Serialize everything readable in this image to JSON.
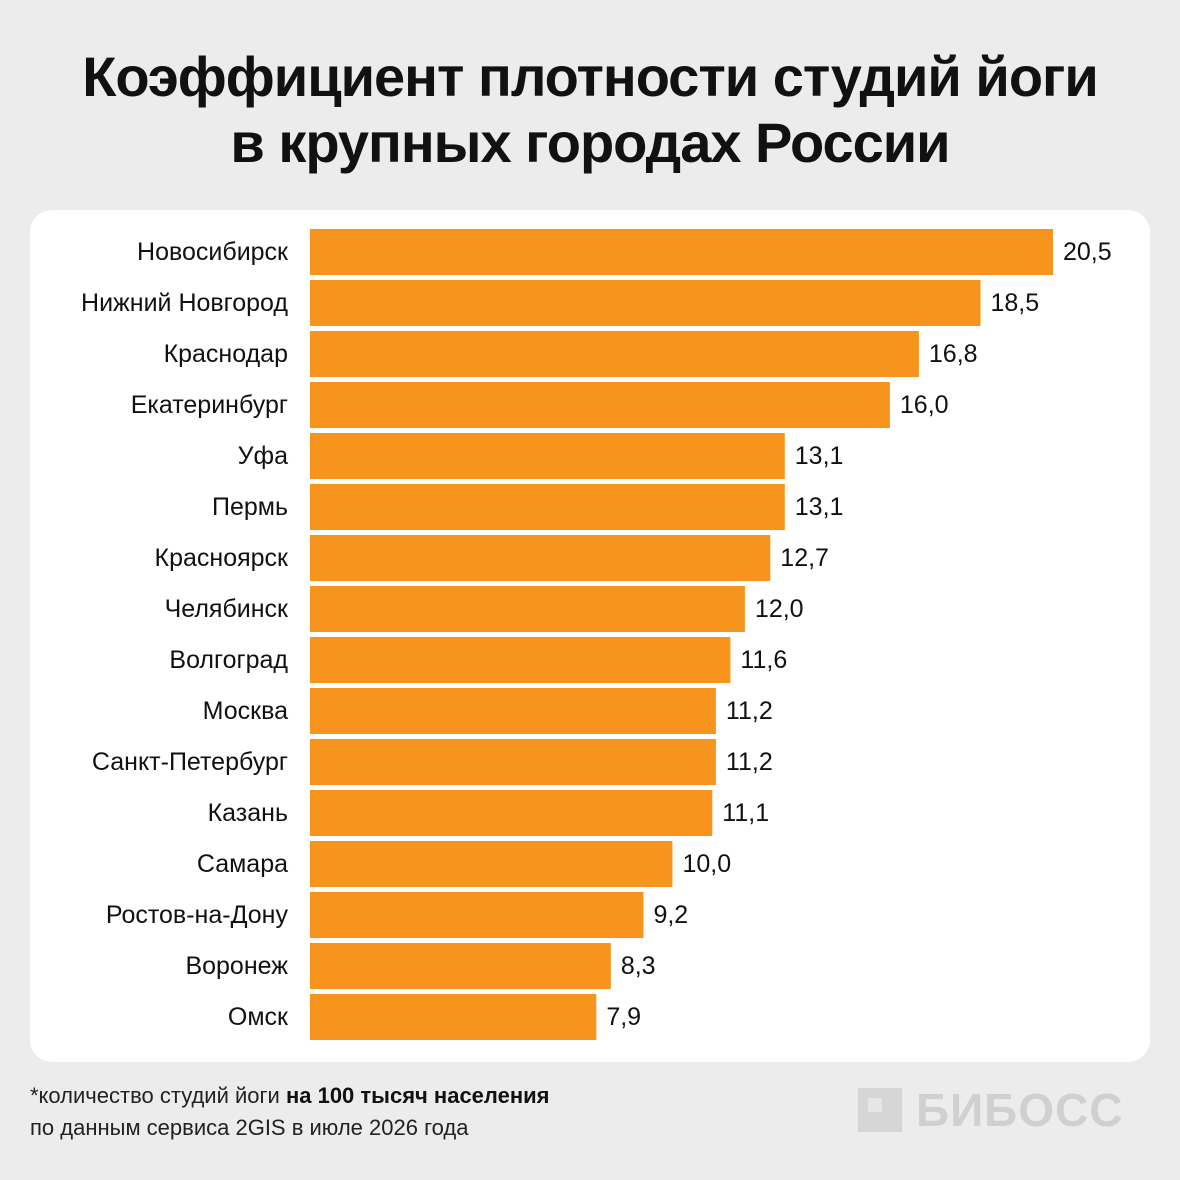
{
  "title_line1": "Коэффициент плотности студий йоги",
  "title_line2": "в крупных городах России",
  "footnote": {
    "line1_prefix": "*количество студий йоги ",
    "line1_bold": "на 100 тысяч населения",
    "line2": "по данным сервиса 2GIS в июле 2026 года"
  },
  "logo": {
    "text": "БИБОСС",
    "icon": "bibosss-logo-icon",
    "color": "#d0d0d0"
  },
  "colors": {
    "bar": "#f7941d",
    "background": "#ececec",
    "card": "#ffffff"
  },
  "chart_data": {
    "type": "bar",
    "orientation": "horizontal",
    "title": "Коэффициент плотности студий йоги в крупных городах России",
    "xlabel": "",
    "ylabel": "",
    "xlim": [
      0,
      20.5
    ],
    "grid": false,
    "categories": [
      "Новосибирск",
      "Нижний Новгород",
      "Краснодар",
      "Екатеринбург",
      "Уфа",
      "Пермь",
      "Красноярск",
      "Челябинск",
      "Волгоград",
      "Москва",
      "Санкт-Петербург",
      "Казань",
      "Самара",
      "Ростов-на-Дону",
      "Воронеж",
      "Омск"
    ],
    "values": [
      20.5,
      18.5,
      16.8,
      16.0,
      13.1,
      13.1,
      12.7,
      12.0,
      11.6,
      11.2,
      11.2,
      11.1,
      10.0,
      9.2,
      8.3,
      7.9
    ],
    "value_labels": [
      "20,5",
      "18,5",
      "16,8",
      "16,0",
      "13,1",
      "13,1",
      "12,7",
      "12,0",
      "11,6",
      "11,2",
      "11,2",
      "11,1",
      "10,0",
      "9,2",
      "8,3",
      "7,9"
    ]
  }
}
